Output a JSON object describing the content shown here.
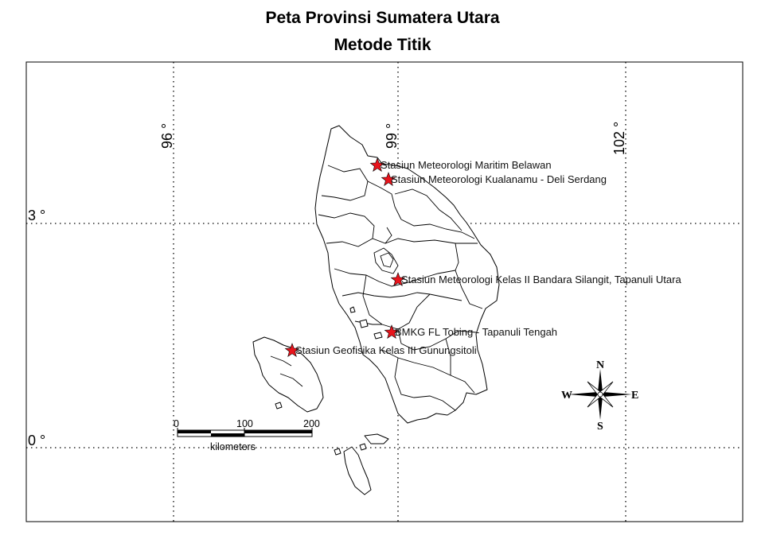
{
  "map": {
    "title_line1": "Peta Provinsi Sumatera Utara",
    "title_line2": "Metode Titik",
    "longitude_labels": [
      "96 °",
      "99 °",
      "102 °"
    ],
    "latitude_labels": [
      "3 °",
      "0 °"
    ],
    "stations": [
      {
        "name": "Stasiun Meteorologi Maritim Belawan",
        "marker": "red-star"
      },
      {
        "name": "Stasiun Meteorologi Kualanamu - Deli Serdang",
        "marker": "red-star"
      },
      {
        "name": "Stasiun Meteorologi Kelas II Bandara Silangit, Tapanuli Utara",
        "marker": "red-star"
      },
      {
        "name": "BMKG FL Tobing - Tapanuli Tengah",
        "marker": "red-star"
      },
      {
        "name": "Stasiun Geofisika Kelas III Gunungsitoli",
        "marker": "red-star"
      }
    ],
    "scale_bar": {
      "ticks": [
        "0",
        "100",
        "200"
      ],
      "unit": "kilometers"
    },
    "compass": {
      "north": "N",
      "south": "S",
      "east": "E",
      "west": "W"
    },
    "colors": {
      "marker": "#e8141c",
      "outline": "#000000",
      "background": "#ffffff"
    }
  }
}
